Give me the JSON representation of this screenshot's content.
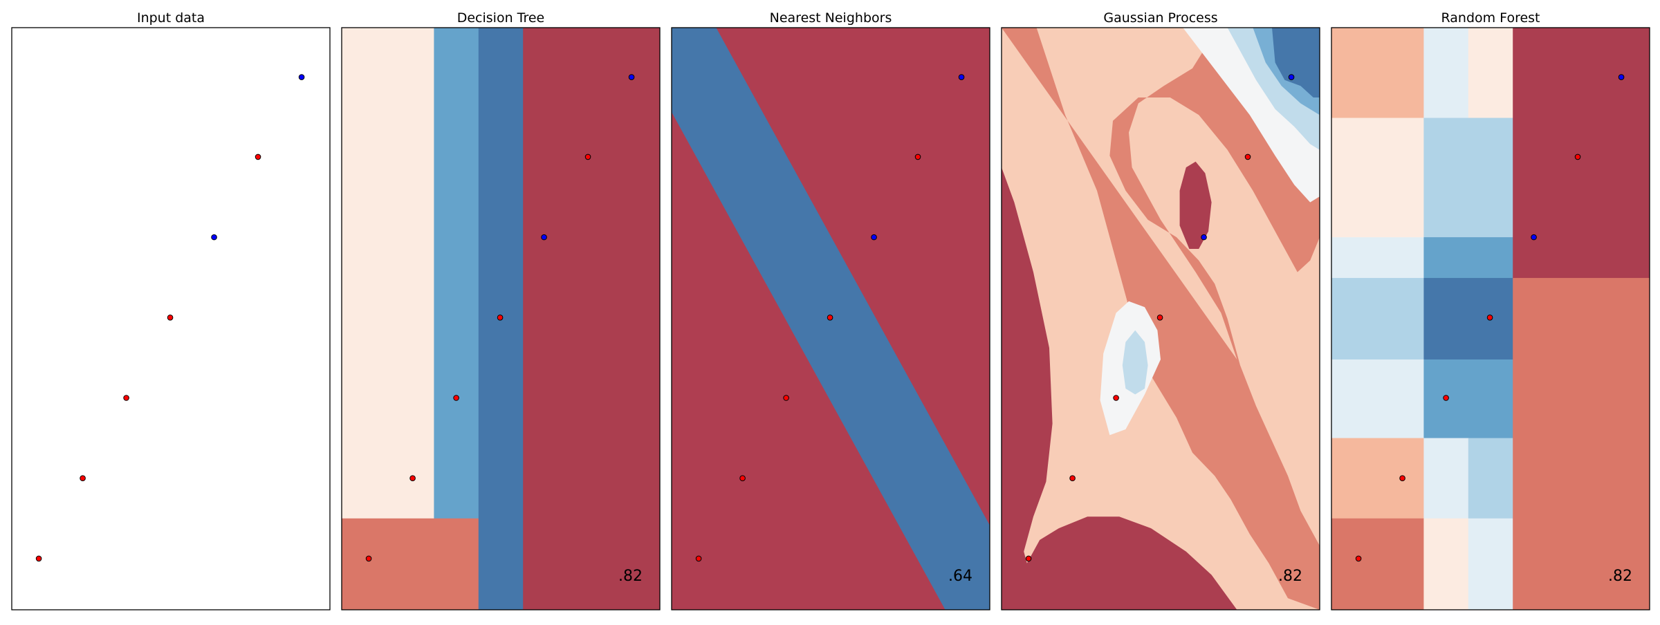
{
  "chart_data": [
    {
      "type": "scatter",
      "title": "Input data",
      "score": "",
      "xlim": [
        0,
        1
      ],
      "ylim": [
        0,
        1
      ],
      "grid": false,
      "points": [
        {
          "x": 0.085,
          "y": 0.088,
          "class": "red"
        },
        {
          "x": 0.223,
          "y": 0.226,
          "class": "red"
        },
        {
          "x": 0.36,
          "y": 0.364,
          "class": "red"
        },
        {
          "x": 0.498,
          "y": 0.502,
          "class": "red"
        },
        {
          "x": 0.636,
          "y": 0.64,
          "class": "blue"
        },
        {
          "x": 0.774,
          "y": 0.778,
          "class": "red"
        },
        {
          "x": 0.911,
          "y": 0.915,
          "class": "blue"
        }
      ]
    },
    {
      "type": "scatter",
      "title": "Decision Tree",
      "score": ".82",
      "xlim": [
        0,
        1
      ],
      "ylim": [
        0,
        1
      ],
      "grid": false,
      "background_regions": [
        {
          "x0": 0.0,
          "x1": 0.29,
          "y0": 0.157,
          "y1": 1.0,
          "color": "#fcebe1"
        },
        {
          "x0": 0.29,
          "x1": 0.43,
          "y0": 0.157,
          "y1": 1.0,
          "color": "#65a3cb"
        },
        {
          "x0": 0.0,
          "x1": 0.43,
          "y0": 0.0,
          "y1": 0.157,
          "color": "#da7768"
        },
        {
          "x0": 0.43,
          "x1": 0.57,
          "y0": 0.0,
          "y1": 1.0,
          "color": "#4577aa"
        },
        {
          "x0": 0.57,
          "x1": 1.0,
          "y0": 0.0,
          "y1": 1.0,
          "color": "#ab3e4f"
        }
      ],
      "points": [
        {
          "x": 0.085,
          "y": 0.088,
          "class": "red"
        },
        {
          "x": 0.223,
          "y": 0.226,
          "class": "red"
        },
        {
          "x": 0.36,
          "y": 0.364,
          "class": "red"
        },
        {
          "x": 0.498,
          "y": 0.502,
          "class": "red"
        },
        {
          "x": 0.636,
          "y": 0.64,
          "class": "blue"
        },
        {
          "x": 0.774,
          "y": 0.778,
          "class": "red"
        },
        {
          "x": 0.911,
          "y": 0.915,
          "class": "blue"
        }
      ]
    },
    {
      "type": "scatter",
      "title": "Nearest Neighbors",
      "score": ".64",
      "xlim": [
        0,
        1
      ],
      "ylim": [
        0,
        1
      ],
      "grid": false,
      "background_color": "#af3e51",
      "background_bands": [
        {
          "polygon": [
            [
              0.0,
              1.0
            ],
            [
              0.14,
              1.0
            ],
            [
              1.0,
              0.145
            ],
            [
              1.0,
              0.0
            ],
            [
              0.86,
              0.0
            ],
            [
              0.0,
              0.855
            ]
          ],
          "color": "#4577aa"
        }
      ],
      "points": [
        {
          "x": 0.085,
          "y": 0.088,
          "class": "red"
        },
        {
          "x": 0.223,
          "y": 0.226,
          "class": "red"
        },
        {
          "x": 0.36,
          "y": 0.364,
          "class": "red"
        },
        {
          "x": 0.498,
          "y": 0.502,
          "class": "red"
        },
        {
          "x": 0.636,
          "y": 0.64,
          "class": "blue"
        },
        {
          "x": 0.774,
          "y": 0.778,
          "class": "red"
        },
        {
          "x": 0.911,
          "y": 0.915,
          "class": "blue"
        }
      ]
    },
    {
      "type": "scatter",
      "title": "Gaussian Process",
      "score": ".82",
      "xlim": [
        0,
        1
      ],
      "ylim": [
        0,
        1
      ],
      "grid": false,
      "background_color": "#f8cdb7",
      "background_contours": [
        {
          "polygon": [
            [
              0.0,
              1.0
            ],
            [
              0.11,
              1.0
            ],
            [
              0.2,
              0.85
            ],
            [
              0.3,
              0.72
            ],
            [
              0.35,
              0.62
            ],
            [
              0.45,
              0.42
            ],
            [
              0.55,
              0.33
            ],
            [
              0.6,
              0.27
            ],
            [
              0.67,
              0.23
            ],
            [
              0.72,
              0.19
            ],
            [
              0.78,
              0.13
            ],
            [
              0.84,
              0.08
            ],
            [
              0.9,
              0.02
            ],
            [
              1.0,
              0.0
            ],
            [
              1.0,
              0.11
            ],
            [
              0.94,
              0.17
            ],
            [
              0.9,
              0.23
            ],
            [
              0.85,
              0.29
            ],
            [
              0.8,
              0.35
            ],
            [
              0.75,
              0.42
            ],
            [
              0.71,
              0.5
            ],
            [
              0.67,
              0.56
            ],
            [
              0.62,
              0.6
            ],
            [
              0.55,
              0.64
            ],
            [
              0.46,
              0.67
            ],
            [
              0.39,
              0.72
            ],
            [
              0.34,
              0.78
            ],
            [
              0.35,
              0.84
            ],
            [
              0.43,
              0.88
            ],
            [
              0.53,
              0.88
            ],
            [
              0.62,
              0.85
            ],
            [
              0.71,
              0.79
            ],
            [
              0.79,
              0.72
            ],
            [
              0.87,
              0.64
            ],
            [
              0.93,
              0.58
            ],
            [
              0.97,
              0.6
            ],
            [
              1.0,
              0.64
            ],
            [
              1.0,
              1.0
            ],
            [
              0.68,
              1.0
            ],
            [
              0.6,
              0.93
            ],
            [
              0.51,
              0.9
            ],
            [
              0.43,
              0.87
            ],
            [
              0.4,
              0.82
            ],
            [
              0.41,
              0.76
            ],
            [
              0.5,
              0.67
            ],
            [
              0.61,
              0.58
            ],
            [
              0.69,
              0.51
            ],
            [
              0.74,
              0.43
            ]
          ],
          "color": "#e08573"
        },
        {
          "polygon": [
            [
              0.0,
              0.0
            ],
            [
              0.0,
              0.76
            ],
            [
              0.04,
              0.7
            ],
            [
              0.1,
              0.58
            ],
            [
              0.15,
              0.45
            ],
            [
              0.16,
              0.32
            ],
            [
              0.14,
              0.22
            ],
            [
              0.1,
              0.16
            ],
            [
              0.07,
              0.1
            ],
            [
              0.08,
              0.08
            ],
            [
              0.12,
              0.12
            ],
            [
              0.18,
              0.14
            ],
            [
              0.27,
              0.16
            ],
            [
              0.37,
              0.16
            ],
            [
              0.47,
              0.14
            ],
            [
              0.58,
              0.1
            ],
            [
              0.66,
              0.06
            ],
            [
              0.74,
              0.0
            ]
          ],
          "color": "#ab3e50"
        },
        {
          "polygon": [
            [
              0.56,
              0.72
            ],
            [
              0.58,
              0.76
            ],
            [
              0.61,
              0.77
            ],
            [
              0.64,
              0.75
            ],
            [
              0.66,
              0.7
            ],
            [
              0.65,
              0.65
            ],
            [
              0.62,
              0.62
            ],
            [
              0.59,
              0.62
            ],
            [
              0.56,
              0.66
            ]
          ],
          "color": "#ab3e50"
        },
        {
          "polygon": [
            [
              0.31,
              0.36
            ],
            [
              0.32,
              0.44
            ],
            [
              0.36,
              0.51
            ],
            [
              0.4,
              0.53
            ],
            [
              0.45,
              0.52
            ],
            [
              0.49,
              0.48
            ],
            [
              0.5,
              0.43
            ],
            [
              0.45,
              0.37
            ],
            [
              0.39,
              0.31
            ],
            [
              0.34,
              0.3
            ]
          ],
          "color": "#f4f5f6"
        },
        {
          "polygon": [
            [
              0.38,
              0.42
            ],
            [
              0.39,
              0.46
            ],
            [
              0.42,
              0.48
            ],
            [
              0.45,
              0.46
            ],
            [
              0.46,
              0.42
            ],
            [
              0.45,
              0.38
            ],
            [
              0.42,
              0.37
            ],
            [
              0.39,
              0.38
            ]
          ],
          "color": "#c1dceb"
        },
        {
          "polygon": [
            [
              0.57,
              1.0
            ],
            [
              0.78,
              0.85
            ],
            [
              0.86,
              0.78
            ],
            [
              0.92,
              0.73
            ],
            [
              0.97,
              0.7
            ],
            [
              1.0,
              0.71
            ],
            [
              1.0,
              1.0
            ]
          ],
          "color": "#f4f5f6"
        },
        {
          "polygon": [
            [
              0.71,
              1.0
            ],
            [
              0.8,
              0.91
            ],
            [
              0.86,
              0.86
            ],
            [
              0.92,
              0.83
            ],
            [
              0.97,
              0.8
            ],
            [
              1.0,
              0.79
            ],
            [
              1.0,
              1.0
            ]
          ],
          "color": "#c1dceb"
        },
        {
          "polygon": [
            [
              0.79,
              1.0
            ],
            [
              0.83,
              0.94
            ],
            [
              0.88,
              0.9
            ],
            [
              0.94,
              0.87
            ],
            [
              1.0,
              0.85
            ],
            [
              1.0,
              1.0
            ]
          ],
          "color": "#78afd4"
        },
        {
          "polygon": [
            [
              0.85,
              1.0
            ],
            [
              0.86,
              0.94
            ],
            [
              0.89,
              0.91
            ],
            [
              0.94,
              0.9
            ],
            [
              0.98,
              0.88
            ],
            [
              1.0,
              0.88
            ],
            [
              1.0,
              1.0
            ]
          ],
          "color": "#4577aa"
        }
      ],
      "points": [
        {
          "x": 0.085,
          "y": 0.088,
          "class": "red"
        },
        {
          "x": 0.223,
          "y": 0.226,
          "class": "red"
        },
        {
          "x": 0.36,
          "y": 0.364,
          "class": "red"
        },
        {
          "x": 0.498,
          "y": 0.502,
          "class": "red"
        },
        {
          "x": 0.636,
          "y": 0.64,
          "class": "blue"
        },
        {
          "x": 0.774,
          "y": 0.778,
          "class": "red"
        },
        {
          "x": 0.911,
          "y": 0.915,
          "class": "blue"
        }
      ]
    },
    {
      "type": "scatter",
      "title": "Random Forest",
      "score": ".82",
      "xlim": [
        0,
        1
      ],
      "ylim": [
        0,
        1
      ],
      "grid": false,
      "background_regions": [
        {
          "x0": 0.0,
          "x1": 0.29,
          "y0": 0.845,
          "y1": 1.0,
          "color": "#f5b89d"
        },
        {
          "x0": 0.29,
          "x1": 0.43,
          "y0": 0.845,
          "y1": 1.0,
          "color": "#e2eef5"
        },
        {
          "x0": 0.43,
          "x1": 0.57,
          "y0": 0.845,
          "y1": 1.0,
          "color": "#fcebe1"
        },
        {
          "x0": 0.0,
          "x1": 0.29,
          "y0": 0.64,
          "y1": 0.845,
          "color": "#fcebe1"
        },
        {
          "x0": 0.29,
          "x1": 0.57,
          "y0": 0.64,
          "y1": 0.845,
          "color": "#b0d3e7"
        },
        {
          "x0": 0.0,
          "x1": 0.29,
          "y0": 0.57,
          "y1": 0.64,
          "color": "#e2eef5"
        },
        {
          "x0": 0.29,
          "x1": 0.57,
          "y0": 0.57,
          "y1": 0.64,
          "color": "#65a3cb"
        },
        {
          "x0": 0.0,
          "x1": 0.29,
          "y0": 0.43,
          "y1": 0.57,
          "color": "#b0d3e7"
        },
        {
          "x0": 0.29,
          "x1": 0.57,
          "y0": 0.43,
          "y1": 0.57,
          "color": "#4577aa"
        },
        {
          "x0": 0.0,
          "x1": 0.29,
          "y0": 0.295,
          "y1": 0.43,
          "color": "#e2eef5"
        },
        {
          "x0": 0.29,
          "x1": 0.57,
          "y0": 0.295,
          "y1": 0.43,
          "color": "#65a3cb"
        },
        {
          "x0": 0.0,
          "x1": 0.29,
          "y0": 0.157,
          "y1": 0.295,
          "color": "#f5b89d"
        },
        {
          "x0": 0.29,
          "x1": 0.43,
          "y0": 0.157,
          "y1": 0.295,
          "color": "#e2eef5"
        },
        {
          "x0": 0.43,
          "x1": 0.57,
          "y0": 0.157,
          "y1": 0.295,
          "color": "#b0d3e7"
        },
        {
          "x0": 0.0,
          "x1": 0.29,
          "y0": 0.0,
          "y1": 0.157,
          "color": "#da7768"
        },
        {
          "x0": 0.29,
          "x1": 0.43,
          "y0": 0.0,
          "y1": 0.157,
          "color": "#fcebe1"
        },
        {
          "x0": 0.43,
          "x1": 0.57,
          "y0": 0.0,
          "y1": 0.157,
          "color": "#e2eef5"
        },
        {
          "x0": 0.57,
          "x1": 1.0,
          "y0": 0.57,
          "y1": 1.0,
          "color": "#ab3e50"
        },
        {
          "x0": 0.57,
          "x1": 1.0,
          "y0": 0.0,
          "y1": 0.57,
          "color": "#da7768"
        }
      ],
      "points": [
        {
          "x": 0.085,
          "y": 0.088,
          "class": "red"
        },
        {
          "x": 0.223,
          "y": 0.226,
          "class": "red"
        },
        {
          "x": 0.36,
          "y": 0.364,
          "class": "red"
        },
        {
          "x": 0.498,
          "y": 0.502,
          "class": "red"
        },
        {
          "x": 0.636,
          "y": 0.64,
          "class": "blue"
        },
        {
          "x": 0.774,
          "y": 0.778,
          "class": "red"
        },
        {
          "x": 0.911,
          "y": 0.915,
          "class": "blue"
        }
      ]
    }
  ],
  "colors": {
    "red_point": "#ff0000",
    "blue_point": "#0000ff",
    "point_edge": "#000000",
    "axes_edge": "#000000"
  }
}
